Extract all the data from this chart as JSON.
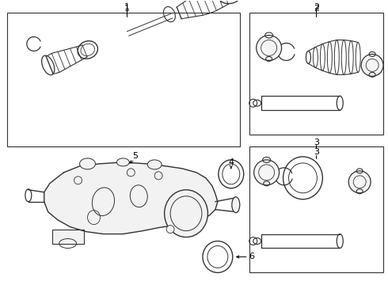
{
  "background_color": "#ffffff",
  "line_color": "#333333",
  "label_color": "#000000",
  "fig_width": 4.9,
  "fig_height": 3.6,
  "dpi": 100
}
